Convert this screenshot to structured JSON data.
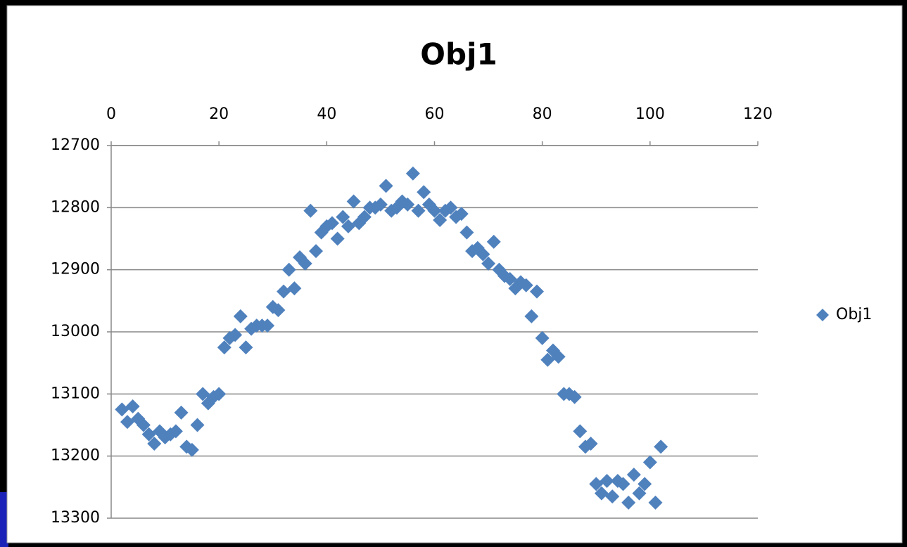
{
  "chart_data": {
    "type": "scatter",
    "title": "Obj1",
    "series": [
      {
        "name": "Obj1",
        "color": "#4f81bd",
        "x": [
          2,
          3,
          4,
          5,
          6,
          7,
          8,
          9,
          10,
          11,
          12,
          13,
          14,
          15,
          16,
          17,
          18,
          19,
          20,
          21,
          22,
          23,
          24,
          25,
          26,
          27,
          28,
          29,
          30,
          31,
          32,
          33,
          34,
          35,
          36,
          37,
          38,
          39,
          40,
          41,
          42,
          43,
          44,
          45,
          46,
          47,
          48,
          49,
          50,
          51,
          52,
          53,
          54,
          55,
          56,
          57,
          58,
          59,
          60,
          61,
          62,
          63,
          64,
          65,
          66,
          67,
          68,
          69,
          70,
          71,
          72,
          73,
          74,
          75,
          76,
          77,
          78,
          79,
          80,
          81,
          82,
          83,
          84,
          85,
          86,
          87,
          88,
          89,
          90,
          91,
          92,
          93,
          94,
          95,
          96,
          97,
          98,
          99,
          100,
          101,
          102
        ],
        "values": [
          13125,
          13145,
          13120,
          13140,
          13150,
          13165,
          13180,
          13160,
          13170,
          13165,
          13160,
          13130,
          13185,
          13190,
          13150,
          13100,
          13115,
          13105,
          13100,
          13025,
          13010,
          13005,
          12975,
          13025,
          12995,
          12990,
          12990,
          12990,
          12960,
          12965,
          12935,
          12900,
          12930,
          12880,
          12890,
          12805,
          12870,
          12840,
          12830,
          12825,
          12850,
          12815,
          12830,
          12790,
          12825,
          12815,
          12800,
          12800,
          12795,
          12765,
          12805,
          12800,
          12790,
          12795,
          12745,
          12805,
          12775,
          12795,
          12805,
          12820,
          12805,
          12800,
          12815,
          12810,
          12840,
          12870,
          12865,
          12875,
          12890,
          12855,
          12900,
          12910,
          12915,
          12930,
          12920,
          12925,
          12975,
          12935,
          13010,
          13045,
          13030,
          13040,
          13100,
          13100,
          13105,
          13160,
          13185,
          13180,
          13245,
          13260,
          13240,
          13265,
          13240,
          13245,
          13275,
          13230,
          13260,
          13245,
          13210,
          13275,
          13185
        ]
      }
    ],
    "xlim": [
      0,
      120
    ],
    "xticks": [
      0,
      20,
      40,
      60,
      80,
      100,
      120
    ],
    "ylim": [
      12700,
      13300
    ],
    "yticks": [
      12700,
      12800,
      12900,
      13000,
      13100,
      13200,
      13300
    ],
    "y_reversed": true,
    "x_axis_position": "top",
    "grid": true,
    "legend": "right"
  }
}
